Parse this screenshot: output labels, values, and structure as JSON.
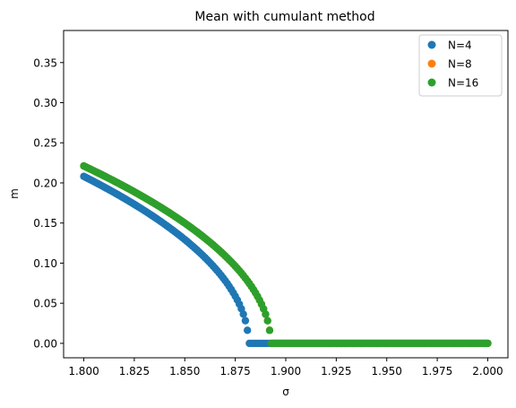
{
  "chart_data": {
    "type": "scatter",
    "title": "Mean with cumulant method",
    "xlabel": "σ",
    "ylabel": "m",
    "xlim": [
      1.79,
      2.01
    ],
    "ylim": [
      -0.018,
      0.39
    ],
    "xticks": [
      1.8,
      1.825,
      1.85,
      1.875,
      1.9,
      1.925,
      1.95,
      1.975,
      2.0
    ],
    "xtick_labels": [
      "1.800",
      "1.825",
      "1.850",
      "1.875",
      "1.900",
      "1.925",
      "1.950",
      "1.975",
      "2.000"
    ],
    "yticks": [
      0.0,
      0.05,
      0.1,
      0.15,
      0.2,
      0.25,
      0.3,
      0.35
    ],
    "ytick_labels": [
      "0.00",
      "0.05",
      "0.10",
      "0.15",
      "0.20",
      "0.25",
      "0.30",
      "0.35"
    ],
    "grid": false,
    "legend_position": "top-right",
    "series": [
      {
        "name": "N=4",
        "color": "#1f77b4",
        "x_start": 1.8,
        "x_end": 2.0,
        "step": 0.001,
        "critical": 1.8815,
        "amplitude": 1.0,
        "exponent": 0.5
      },
      {
        "name": "N=8",
        "color": "#ff7f0e",
        "x_start": 1.8,
        "x_end": 2.0,
        "step": 0.001,
        "critical": 1.8925,
        "amplitude": 1.0,
        "exponent": 0.5
      },
      {
        "name": "N=16",
        "color": "#2ca02c",
        "x_start": 1.8,
        "x_end": 2.0,
        "step": 0.001,
        "critical": 1.8925,
        "amplitude": 1.0,
        "exponent": 0.5
      }
    ]
  }
}
